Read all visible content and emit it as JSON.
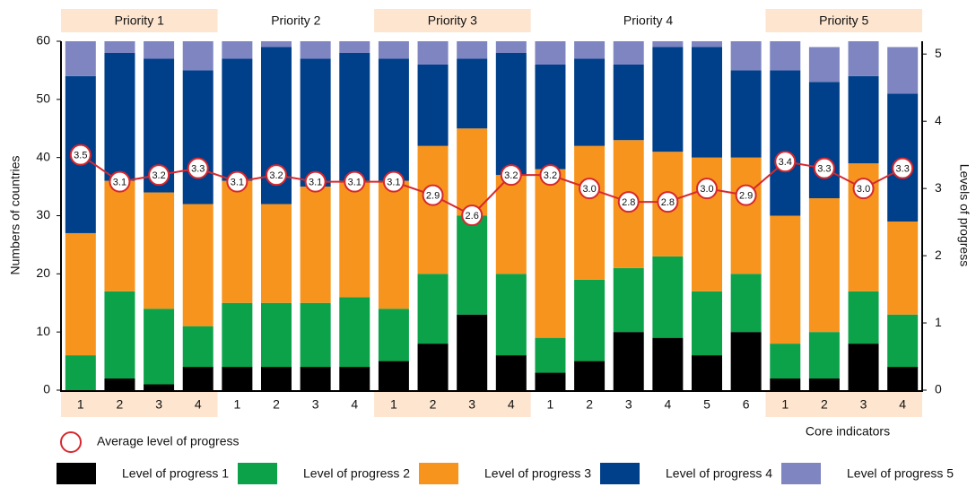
{
  "chart_data": {
    "type": "stacked_bar_line",
    "groups": [
      {
        "label": "Priority 1",
        "categories": [
          "1",
          "2",
          "3",
          "4"
        ]
      },
      {
        "label": "Priority 2",
        "categories": [
          "1",
          "2",
          "3",
          "4"
        ]
      },
      {
        "label": "Priority 3",
        "categories": [
          "1",
          "2",
          "3",
          "4"
        ]
      },
      {
        "label": "Priority 4",
        "categories": [
          "1",
          "2",
          "3",
          "4",
          "5",
          "6"
        ]
      },
      {
        "label": "Priority 5",
        "categories": [
          "1",
          "2",
          "3",
          "4"
        ]
      }
    ],
    "xlabel": "Core indicators",
    "ylabel": "Numbers of countries",
    "y2label": "Levels of progress",
    "ylim": [
      0,
      60
    ],
    "yticks": [
      0,
      10,
      20,
      30,
      40,
      50,
      60
    ],
    "y2lim": [
      0,
      5.19
    ],
    "y2ticks": [
      0,
      1,
      2,
      3,
      4,
      5
    ],
    "series": [
      {
        "name": "Level of progress 1",
        "color": "#000000",
        "values": [
          0,
          2,
          1,
          4,
          4,
          4,
          4,
          4,
          5,
          8,
          13,
          6,
          3,
          5,
          10,
          9,
          6,
          10,
          2,
          2,
          8,
          4
        ]
      },
      {
        "name": "Level of progress 2",
        "color": "#0ba24a",
        "values": [
          6,
          15,
          13,
          7,
          11,
          11,
          11,
          12,
          9,
          12,
          17,
          14,
          6,
          14,
          11,
          14,
          11,
          10,
          6,
          8,
          9,
          9
        ]
      },
      {
        "name": "Level of progress 3",
        "color": "#f7941d",
        "values": [
          21,
          19,
          20,
          21,
          21,
          17,
          20,
          20,
          22,
          22,
          15,
          17,
          29,
          23,
          22,
          18,
          23,
          20,
          22,
          23,
          22,
          16
        ]
      },
      {
        "name": "Level of progress 4",
        "color": "#003f8a",
        "values": [
          27,
          22,
          23,
          23,
          21,
          27,
          22,
          22,
          21,
          14,
          12,
          21,
          18,
          15,
          13,
          18,
          19,
          15,
          25,
          20,
          15,
          22
        ]
      },
      {
        "name": "Level of progress 5",
        "color": "#7e85c1",
        "values": [
          6,
          2,
          3,
          5,
          3,
          1,
          3,
          2,
          3,
          4,
          3,
          2,
          4,
          3,
          4,
          1,
          1,
          5,
          5,
          6,
          6,
          8
        ]
      }
    ],
    "line": {
      "name": "Average level of progress",
      "color": "#d6282e",
      "axis": "y2",
      "values": [
        3.5,
        3.1,
        3.2,
        3.3,
        3.1,
        3.2,
        3.1,
        3.1,
        3.1,
        2.9,
        2.6,
        3.2,
        3.2,
        3.0,
        2.8,
        2.8,
        3.0,
        2.9,
        3.4,
        3.3,
        3.0,
        3.3
      ],
      "value_labels": [
        "3.5",
        "3.1",
        "3.2",
        "3.3",
        "3.1",
        "3.2",
        "3.1",
        "3.1",
        "3.1",
        "2.9",
        "2.6",
        "3.2",
        "3.2",
        "3.0",
        "2.8",
        "2.8",
        "3.0",
        "2.9",
        "3.4",
        "3.3",
        "3.0",
        "3.3"
      ]
    },
    "group_highlight_color": "#fde5cf"
  }
}
